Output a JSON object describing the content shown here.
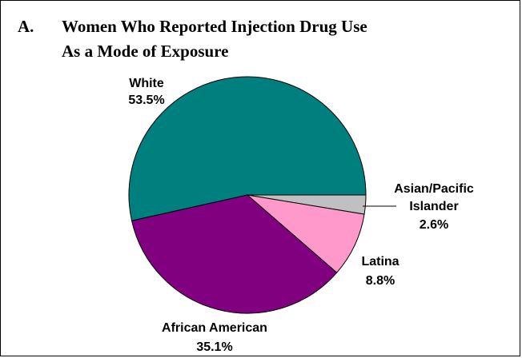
{
  "chart_data": {
    "type": "pie",
    "title_letter": "A.",
    "title_line1": "Women Who Reported Injection Drug Use",
    "title_line2": "As a Mode of Exposure",
    "slices": [
      {
        "label": "White",
        "value": 53.5,
        "value_text": "53.5%",
        "color": "#007F7F"
      },
      {
        "label": "Asian/Pacific Islander",
        "label_lines": [
          "Asian/Pacific",
          "Islander"
        ],
        "value": 2.6,
        "value_text": "2.6%",
        "color": "#C0C0C0"
      },
      {
        "label": "Latina",
        "value": 8.8,
        "value_text": "8.8%",
        "color": "#FF99CC"
      },
      {
        "label": "African American",
        "value": 35.1,
        "value_text": "35.1%",
        "color": "#800080"
      }
    ]
  }
}
